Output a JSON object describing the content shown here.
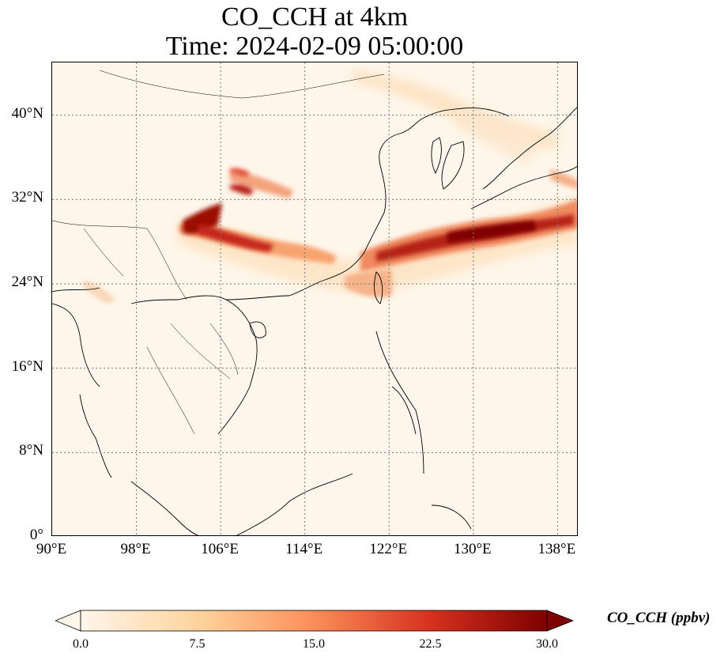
{
  "title": {
    "line1": "CO_CCH at 4km",
    "line2": "Time: 2024-02-09 05:00:00"
  },
  "map": {
    "lon_range": [
      90,
      140
    ],
    "lat_range": [
      0,
      45
    ],
    "lat_ticks": [
      {
        "value": 40,
        "label": "40°N"
      },
      {
        "value": 32,
        "label": "32°N"
      },
      {
        "value": 24,
        "label": "24°N"
      },
      {
        "value": 16,
        "label": "16°N"
      },
      {
        "value": 8,
        "label": "8°N"
      },
      {
        "value": 0,
        "label": "0°"
      }
    ],
    "lon_ticks": [
      {
        "value": 90,
        "label": "90°E"
      },
      {
        "value": 98,
        "label": "98°E"
      },
      {
        "value": 106,
        "label": "106°E"
      },
      {
        "value": 114,
        "label": "114°E"
      },
      {
        "value": 122,
        "label": "122°E"
      },
      {
        "value": 130,
        "label": "130°E"
      },
      {
        "value": 138,
        "label": "138°E"
      }
    ],
    "gridlines": true,
    "background_color": "#fef6ea"
  },
  "colorbar": {
    "title": "CO_CCH (ppbv)",
    "min": 0,
    "max": 30,
    "ticks": [
      "0.0",
      "7.5",
      "15.0",
      "22.5",
      "30.0"
    ],
    "colors": [
      "#fff5eb",
      "#fdd49e",
      "#fc8d59",
      "#d7301f",
      "#7f0000"
    ],
    "extend": "both"
  }
}
